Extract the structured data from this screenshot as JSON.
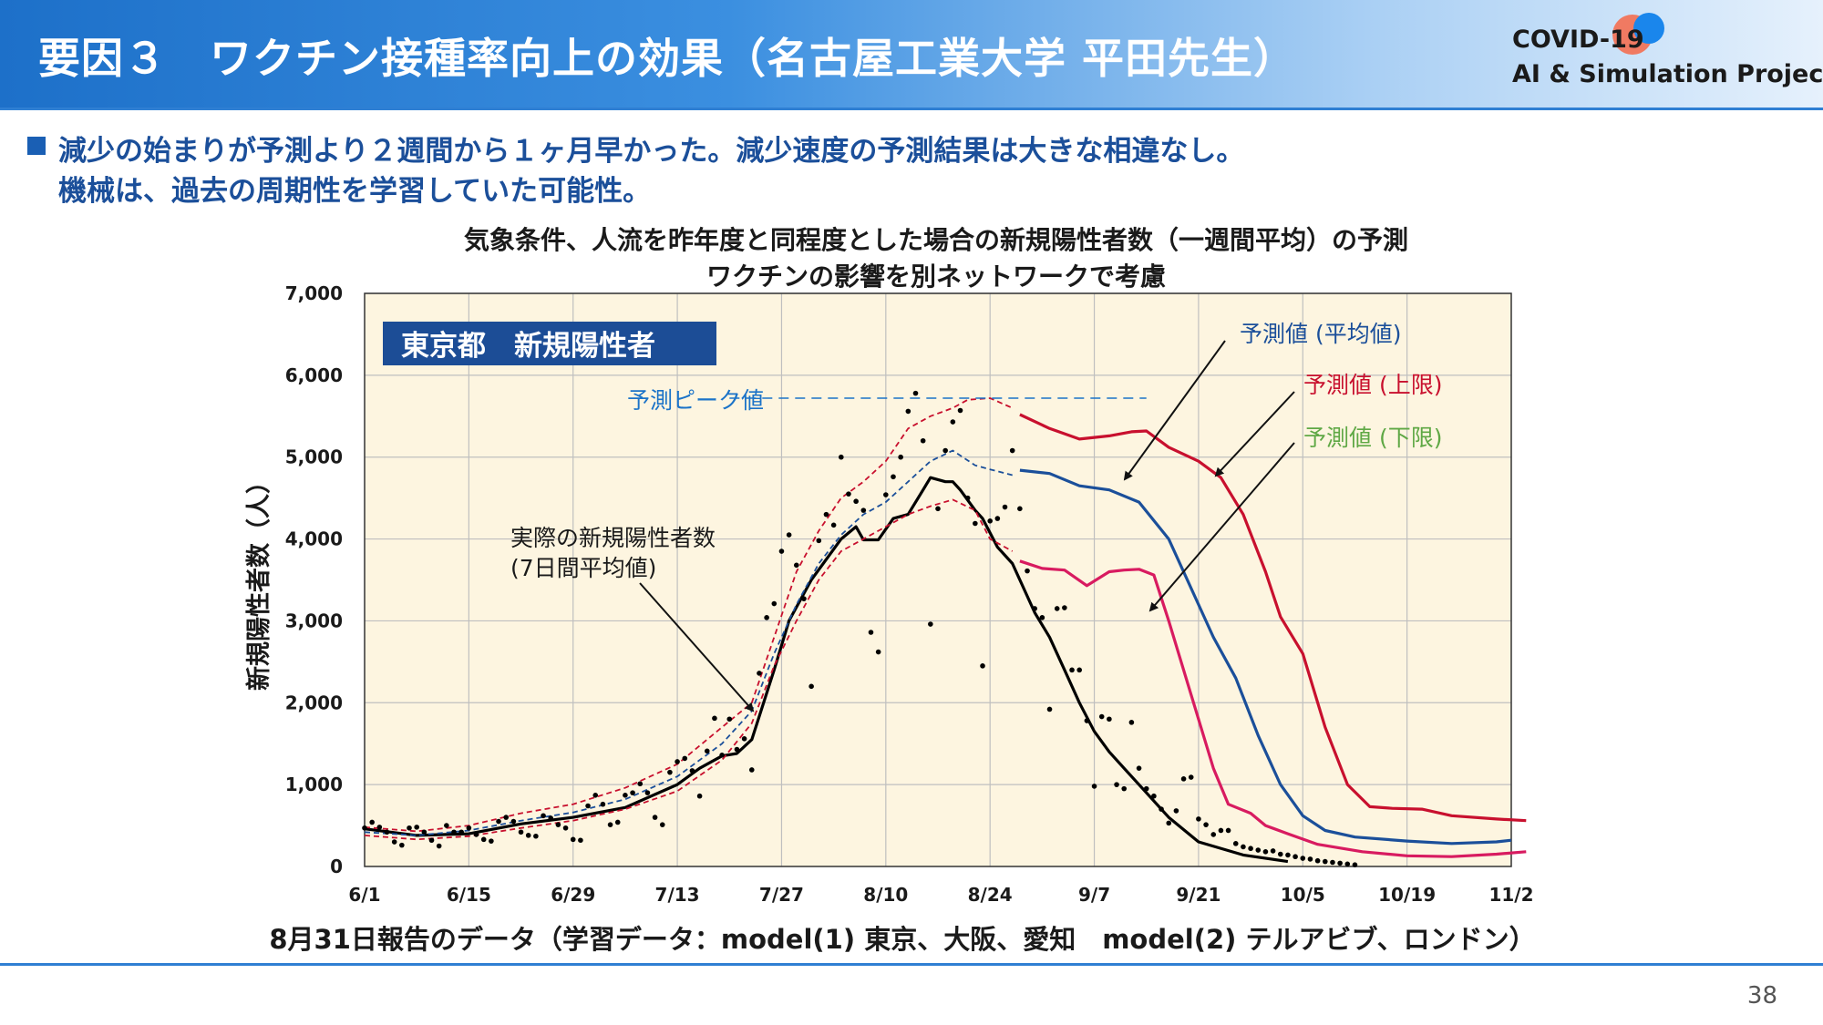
{
  "header": {
    "title": "要因３　ワクチン接種率向上の効果（名古屋工業大学 平田先生）",
    "logo_line1": "COVID-19",
    "logo_line2": "AI & Simulation Project"
  },
  "bullets": {
    "line1": "減少の始まりが予測より２週間から１ヶ月早かった。減少速度の予測結果は大きな相違なし。",
    "line2": "機械は、過去の周期性を学習していた可能性。"
  },
  "chart_title": {
    "line1": "気象条件、人流を昨年度と同程度とした場合の新規陽性者数（一週間平均）の予測",
    "line2": "ワクチンの影響を別ネットワークで考慮"
  },
  "caption": "8月31日報告のデータ（学習データ：model(1) 東京、大阪、愛知　model(2) テルアビブ、ロンドン）",
  "page_number": "38",
  "colors": {
    "header_blue": "#1d70c9",
    "text_blue": "#1b4f9a",
    "plot_bg": "#fdf5e0",
    "mean": "#1b4f9a",
    "upper": "#c8102e",
    "lower": "#d81b60",
    "lower_label": "#5fa845",
    "actual": "#000000",
    "label_box": "#1c4d96"
  },
  "chart_data": {
    "type": "line",
    "ylabel": "新規陽性者数（人）",
    "xlabel": "",
    "ylim": [
      0,
      7000
    ],
    "yticks": [
      "0",
      "1,000",
      "2,000",
      "3,000",
      "4,000",
      "5,000",
      "6,000",
      "7,000"
    ],
    "xtick_labels": [
      "6/1",
      "6/15",
      "6/29",
      "7/13",
      "7/27",
      "8/10",
      "8/24",
      "9/7",
      "9/21",
      "10/5",
      "10/19",
      "11/2"
    ],
    "grid": true,
    "region_label": "東京都　新規陽性者",
    "peak_label": "予測ピーク値",
    "peak_value": 5720,
    "annotations": {
      "actual": [
        "実際の新規陽性者数",
        "(7日間平均値)"
      ],
      "mean": "予測値 (平均値)",
      "upper": "予測値 (上限)",
      "lower": "予測値 (下限)"
    },
    "series": [
      {
        "name": "実際の新規陽性者数 (7日間平均値)",
        "style": "solid",
        "color": "#000000",
        "points": [
          [
            0,
            460
          ],
          [
            7,
            380
          ],
          [
            14,
            400
          ],
          [
            21,
            520
          ],
          [
            28,
            600
          ],
          [
            35,
            720
          ],
          [
            42,
            1000
          ],
          [
            45,
            1200
          ],
          [
            48,
            1350
          ],
          [
            50,
            1380
          ],
          [
            52,
            1550
          ],
          [
            55,
            2400
          ],
          [
            57,
            3000
          ],
          [
            60,
            3500
          ],
          [
            64,
            4000
          ],
          [
            66,
            4150
          ],
          [
            67,
            3990
          ],
          [
            69,
            3990
          ],
          [
            71,
            4250
          ],
          [
            73,
            4300
          ],
          [
            75,
            4600
          ],
          [
            76,
            4750
          ],
          [
            78,
            4700
          ],
          [
            79,
            4700
          ],
          [
            80,
            4600
          ],
          [
            82,
            4350
          ],
          [
            83,
            4250
          ],
          [
            85,
            3900
          ],
          [
            87,
            3700
          ],
          [
            88,
            3500
          ],
          [
            90,
            3100
          ],
          [
            92,
            2800
          ],
          [
            94,
            2400
          ],
          [
            96,
            2000
          ],
          [
            98,
            1650
          ],
          [
            100,
            1400
          ],
          [
            102,
            1200
          ],
          [
            105,
            900
          ],
          [
            108,
            600
          ],
          [
            112,
            300
          ],
          [
            118,
            140
          ],
          [
            124,
            60
          ]
        ]
      },
      {
        "name": "予測値 (平均値)",
        "style": "dashed",
        "color": "#1b4f9a",
        "points": [
          [
            0,
            420
          ],
          [
            7,
            380
          ],
          [
            14,
            440
          ],
          [
            21,
            560
          ],
          [
            28,
            660
          ],
          [
            35,
            820
          ],
          [
            42,
            1100
          ],
          [
            48,
            1500
          ],
          [
            52,
            1900
          ],
          [
            55,
            2600
          ],
          [
            58,
            3200
          ],
          [
            61,
            3700
          ],
          [
            64,
            4050
          ],
          [
            67,
            4300
          ],
          [
            70,
            4450
          ],
          [
            73,
            4700
          ],
          [
            76,
            4950
          ],
          [
            79,
            5080
          ],
          [
            82,
            4900
          ],
          [
            84,
            4850
          ],
          [
            87,
            4780
          ]
        ]
      },
      {
        "name": "予測値 (上限)",
        "style": "dashed",
        "color": "#c8102e",
        "points": [
          [
            0,
            480
          ],
          [
            7,
            430
          ],
          [
            14,
            500
          ],
          [
            21,
            650
          ],
          [
            28,
            760
          ],
          [
            35,
            960
          ],
          [
            42,
            1250
          ],
          [
            48,
            1700
          ],
          [
            52,
            2000
          ],
          [
            55,
            2800
          ],
          [
            58,
            3600
          ],
          [
            61,
            4100
          ],
          [
            64,
            4500
          ],
          [
            67,
            4700
          ],
          [
            70,
            4950
          ],
          [
            73,
            5350
          ],
          [
            76,
            5500
          ],
          [
            79,
            5600
          ],
          [
            81,
            5700
          ],
          [
            84,
            5720
          ],
          [
            87,
            5600
          ]
        ]
      },
      {
        "name": "予測値 (下限)",
        "style": "dashed",
        "color": "#c8102e",
        "points": [
          [
            0,
            380
          ],
          [
            7,
            330
          ],
          [
            14,
            370
          ],
          [
            21,
            470
          ],
          [
            28,
            560
          ],
          [
            35,
            700
          ],
          [
            42,
            920
          ],
          [
            48,
            1300
          ],
          [
            52,
            1750
          ],
          [
            55,
            2450
          ],
          [
            58,
            3000
          ],
          [
            61,
            3500
          ],
          [
            64,
            3850
          ],
          [
            67,
            4000
          ],
          [
            70,
            4150
          ],
          [
            73,
            4300
          ],
          [
            76,
            4400
          ],
          [
            79,
            4480
          ],
          [
            82,
            4350
          ],
          [
            84,
            4000
          ],
          [
            87,
            3850
          ]
        ]
      },
      {
        "name": "予測値 (平均値) solid",
        "style": "solid",
        "color": "#1b4f9a",
        "points": [
          [
            88,
            4840
          ],
          [
            92,
            4800
          ],
          [
            96,
            4650
          ],
          [
            100,
            4600
          ],
          [
            104,
            4450
          ],
          [
            108,
            4000
          ],
          [
            111,
            3400
          ],
          [
            114,
            2800
          ],
          [
            117,
            2300
          ],
          [
            120,
            1600
          ],
          [
            123,
            1000
          ],
          [
            126,
            620
          ],
          [
            129,
            440
          ],
          [
            133,
            360
          ],
          [
            140,
            310
          ],
          [
            146,
            280
          ],
          [
            152,
            300
          ],
          [
            154,
            320
          ]
        ]
      },
      {
        "name": "予測値 (上限) solid",
        "style": "solid",
        "color": "#c8102e",
        "points": [
          [
            88,
            5520
          ],
          [
            92,
            5350
          ],
          [
            96,
            5220
          ],
          [
            100,
            5260
          ],
          [
            103,
            5310
          ],
          [
            105,
            5320
          ],
          [
            108,
            5120
          ],
          [
            112,
            4950
          ],
          [
            115,
            4750
          ],
          [
            118,
            4300
          ],
          [
            121,
            3600
          ],
          [
            123,
            3050
          ],
          [
            126,
            2600
          ],
          [
            129,
            1700
          ],
          [
            132,
            1000
          ],
          [
            135,
            730
          ],
          [
            138,
            710
          ],
          [
            142,
            700
          ],
          [
            146,
            620
          ],
          [
            152,
            580
          ],
          [
            156,
            560
          ]
        ]
      },
      {
        "name": "予測値 (下限) solid",
        "style": "solid",
        "color": "#d81b60",
        "points": [
          [
            88,
            3730
          ],
          [
            91,
            3640
          ],
          [
            94,
            3620
          ],
          [
            97,
            3430
          ],
          [
            100,
            3600
          ],
          [
            102,
            3620
          ],
          [
            104,
            3630
          ],
          [
            106,
            3560
          ],
          [
            108,
            3000
          ],
          [
            111,
            2100
          ],
          [
            114,
            1200
          ],
          [
            116,
            760
          ],
          [
            119,
            650
          ],
          [
            121,
            500
          ],
          [
            124,
            400
          ],
          [
            128,
            270
          ],
          [
            134,
            180
          ],
          [
            140,
            130
          ],
          [
            146,
            120
          ],
          [
            152,
            150
          ],
          [
            156,
            180
          ]
        ]
      },
      {
        "name": "peak_line",
        "style": "peak",
        "color": "#1b73c8",
        "points": [
          [
            49,
            5720
          ],
          [
            105,
            5720
          ]
        ]
      }
    ],
    "daily_points": [
      [
        0,
        470
      ],
      [
        1,
        540
      ],
      [
        2,
        480
      ],
      [
        3,
        420
      ],
      [
        4,
        300
      ],
      [
        5,
        260
      ],
      [
        6,
        470
      ],
      [
        7,
        480
      ],
      [
        8,
        420
      ],
      [
        9,
        320
      ],
      [
        10,
        250
      ],
      [
        11,
        500
      ],
      [
        12,
        420
      ],
      [
        13,
        420
      ],
      [
        14,
        470
      ],
      [
        15,
        390
      ],
      [
        16,
        330
      ],
      [
        17,
        310
      ],
      [
        18,
        550
      ],
      [
        19,
        600
      ],
      [
        20,
        550
      ],
      [
        21,
        420
      ],
      [
        22,
        380
      ],
      [
        23,
        370
      ],
      [
        24,
        620
      ],
      [
        25,
        590
      ],
      [
        26,
        510
      ],
      [
        27,
        470
      ],
      [
        28,
        330
      ],
      [
        29,
        320
      ],
      [
        30,
        740
      ],
      [
        31,
        870
      ],
      [
        32,
        760
      ],
      [
        33,
        510
      ],
      [
        34,
        540
      ],
      [
        35,
        870
      ],
      [
        36,
        900
      ],
      [
        37,
        1010
      ],
      [
        38,
        900
      ],
      [
        39,
        600
      ],
      [
        40,
        510
      ],
      [
        41,
        1150
      ],
      [
        42,
        1280
      ],
      [
        43,
        1320
      ],
      [
        44,
        1170
      ],
      [
        45,
        860
      ],
      [
        46,
        1410
      ],
      [
        47,
        1810
      ],
      [
        48,
        1360
      ],
      [
        49,
        1800
      ],
      [
        50,
        1430
      ],
      [
        51,
        1560
      ],
      [
        52,
        1180
      ],
      [
        53,
        2360
      ],
      [
        54,
        3040
      ],
      [
        55,
        3210
      ],
      [
        56,
        3850
      ],
      [
        57,
        4050
      ],
      [
        58,
        3680
      ],
      [
        59,
        3270
      ],
      [
        60,
        2200
      ],
      [
        61,
        3980
      ],
      [
        62,
        4300
      ],
      [
        63,
        4170
      ],
      [
        64,
        5000
      ],
      [
        65,
        4550
      ],
      [
        66,
        4460
      ],
      [
        67,
        4350
      ],
      [
        68,
        2860
      ],
      [
        69,
        2620
      ],
      [
        70,
        4540
      ],
      [
        71,
        4760
      ],
      [
        72,
        5000
      ],
      [
        73,
        5560
      ],
      [
        74,
        5780
      ],
      [
        75,
        5200
      ],
      [
        76,
        2960
      ],
      [
        77,
        4370
      ],
      [
        78,
        5080
      ],
      [
        79,
        5430
      ],
      [
        80,
        5570
      ],
      [
        81,
        4500
      ],
      [
        82,
        4190
      ],
      [
        83,
        2450
      ],
      [
        84,
        4220
      ],
      [
        85,
        4250
      ],
      [
        86,
        4390
      ],
      [
        87,
        5080
      ],
      [
        88,
        4370
      ],
      [
        89,
        3610
      ],
      [
        90,
        3150
      ],
      [
        91,
        3040
      ],
      [
        92,
        1920
      ],
      [
        93,
        3150
      ],
      [
        94,
        3160
      ],
      [
        95,
        2400
      ],
      [
        96,
        2400
      ],
      [
        97,
        1780
      ],
      [
        98,
        980
      ],
      [
        99,
        1830
      ],
      [
        100,
        1800
      ],
      [
        101,
        1000
      ],
      [
        102,
        950
      ],
      [
        103,
        1760
      ],
      [
        104,
        1200
      ],
      [
        105,
        950
      ],
      [
        106,
        860
      ],
      [
        107,
        700
      ],
      [
        108,
        530
      ],
      [
        109,
        680
      ],
      [
        110,
        1070
      ],
      [
        111,
        1090
      ],
      [
        112,
        580
      ],
      [
        113,
        510
      ],
      [
        114,
        390
      ],
      [
        115,
        440
      ],
      [
        116,
        440
      ],
      [
        117,
        280
      ],
      [
        118,
        240
      ],
      [
        119,
        220
      ],
      [
        120,
        200
      ],
      [
        121,
        180
      ],
      [
        122,
        190
      ],
      [
        123,
        150
      ],
      [
        124,
        140
      ],
      [
        125,
        120
      ],
      [
        126,
        100
      ],
      [
        127,
        90
      ],
      [
        128,
        70
      ],
      [
        129,
        60
      ],
      [
        130,
        50
      ],
      [
        131,
        40
      ],
      [
        132,
        30
      ],
      [
        133,
        20
      ]
    ]
  }
}
